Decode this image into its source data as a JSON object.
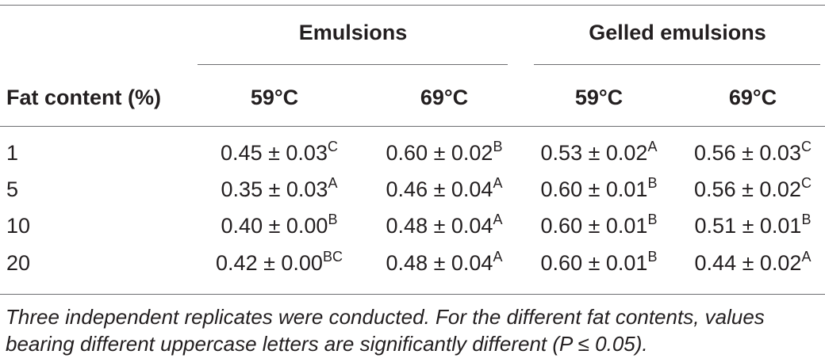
{
  "table": {
    "group_headers": {
      "emulsions": "Emulsions",
      "gelled_emulsions": "Gelled emulsions"
    },
    "column_headers": [
      "Fat content (%)",
      "59°C",
      "69°C",
      "59°C",
      "69°C"
    ],
    "rows": [
      {
        "fat": "1",
        "cells": [
          {
            "value": "0.45 ± 0.03",
            "sup": "C"
          },
          {
            "value": "0.60 ± 0.02",
            "sup": "B"
          },
          {
            "value": "0.53 ± 0.02",
            "sup": "A"
          },
          {
            "value": "0.56 ± 0.03",
            "sup": "C"
          }
        ]
      },
      {
        "fat": "5",
        "cells": [
          {
            "value": "0.35 ± 0.03",
            "sup": "A"
          },
          {
            "value": "0.46 ± 0.04",
            "sup": "A"
          },
          {
            "value": "0.60 ± 0.01",
            "sup": "B"
          },
          {
            "value": "0.56 ± 0.02",
            "sup": "C"
          }
        ]
      },
      {
        "fat": "10",
        "cells": [
          {
            "value": "0.40 ± 0.00",
            "sup": "B"
          },
          {
            "value": "0.48 ± 0.04",
            "sup": "A"
          },
          {
            "value": "0.60 ± 0.01",
            "sup": "B"
          },
          {
            "value": "0.51 ± 0.01",
            "sup": "B"
          }
        ]
      },
      {
        "fat": "20",
        "cells": [
          {
            "value": "0.42 ± 0.00",
            "sup": "BC"
          },
          {
            "value": "0.48 ± 0.04",
            "sup": "A"
          },
          {
            "value": "0.60 ± 0.01",
            "sup": "B"
          },
          {
            "value": "0.44 ± 0.02",
            "sup": "A"
          }
        ]
      }
    ],
    "footnote": {
      "line1": "Three independent replicates were conducted. For the different fat contents, values",
      "line2": "bearing different uppercase letters are significantly different (P ≤ 0.05)."
    }
  }
}
